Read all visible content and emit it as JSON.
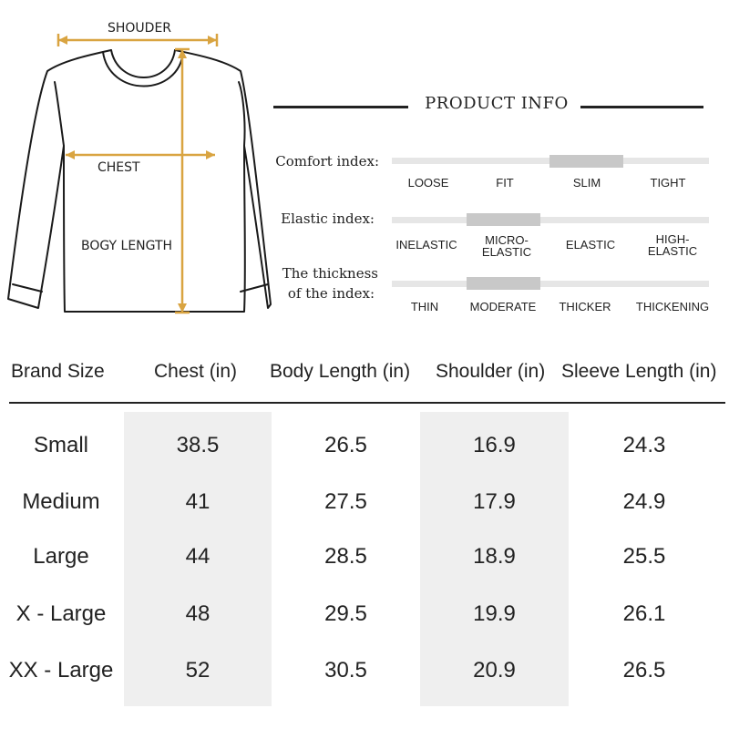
{
  "diagram": {
    "shoulder_label": "SHOUDER",
    "chest_label": "CHEST",
    "body_length_label": "BOGY LENGTH",
    "measure_color": "#d9a441"
  },
  "product_info": {
    "title": "PRODUCT INFO",
    "indices": [
      {
        "label": "Comfort index:",
        "options": [
          "LOOSE",
          "FIT",
          "SLIM",
          "TIGHT"
        ],
        "selected": "SLIM"
      },
      {
        "label": "Elastic index:",
        "options": [
          "INELASTIC",
          "MICRO-\nELASTIC",
          "ELASTIC",
          "HIGH-\nELASTIC"
        ],
        "selected": "MICRO-\nELASTIC"
      },
      {
        "label_line1": "The thickness",
        "label_line2": "of the index:",
        "options": [
          "THIN",
          "MODERATE",
          "THICKER",
          "THICKENING"
        ],
        "selected": "MODERATE"
      }
    ]
  },
  "size_table": {
    "headers": [
      "Brand Size",
      "Chest (in)",
      "Body Length (in)",
      "Shoulder (in)",
      "Sleeve Length (in)"
    ],
    "rows": [
      [
        "Small",
        "38.5",
        "26.5",
        "16.9",
        "24.3"
      ],
      [
        "Medium",
        "41",
        "27.5",
        "17.9",
        "24.9"
      ],
      [
        "Large",
        "44",
        "28.5",
        "18.9",
        "25.5"
      ],
      [
        "X - Large",
        "48",
        "29.5",
        "19.9",
        "26.1"
      ],
      [
        "XX - Large",
        "52",
        "30.5",
        "20.9",
        "26.5"
      ]
    ],
    "shade_color": "#efefef"
  }
}
